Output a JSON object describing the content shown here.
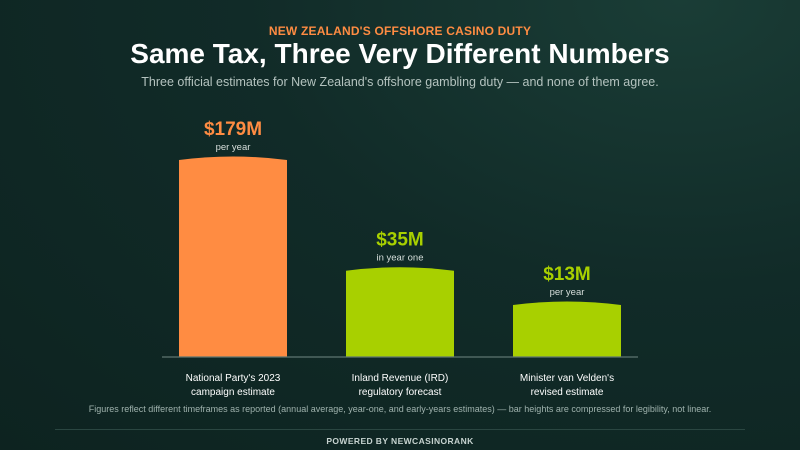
{
  "header": {
    "kicker": "NEW ZEALAND'S OFFSHORE CASINO DUTY",
    "title": "Same Tax, Three Very Different Numbers",
    "subtitle": "Three official estimates for New Zealand's offshore gambling duty — and none of them agree."
  },
  "chart_data": {
    "type": "bar",
    "categories": [
      [
        "National Party's 2023",
        "campaign estimate"
      ],
      [
        "Inland Revenue (IRD)",
        "regulatory forecast"
      ],
      [
        "Minister van Velden's",
        "revised estimate"
      ]
    ],
    "values": [
      179,
      35,
      13
    ],
    "unit": "$M",
    "value_labels": [
      "$179M",
      "$35M",
      "$13M"
    ],
    "value_sublabels": [
      "per year",
      "in year one",
      "per year"
    ],
    "colors": [
      "#ff8c42",
      "#a8d000",
      "#a8d000"
    ],
    "label_colors": [
      "#ff8c42",
      "#a8d000",
      "#a8d000"
    ],
    "scale": "compressed, not linear",
    "grid": false,
    "legend": "none"
  },
  "footnote": "Figures reflect different timeframes as reported (annual average, year-one, and early-years estimates) — bar heights are compressed for legibility, not linear.",
  "footer": {
    "powered_by": "POWERED BY NEWCASINORANK"
  }
}
